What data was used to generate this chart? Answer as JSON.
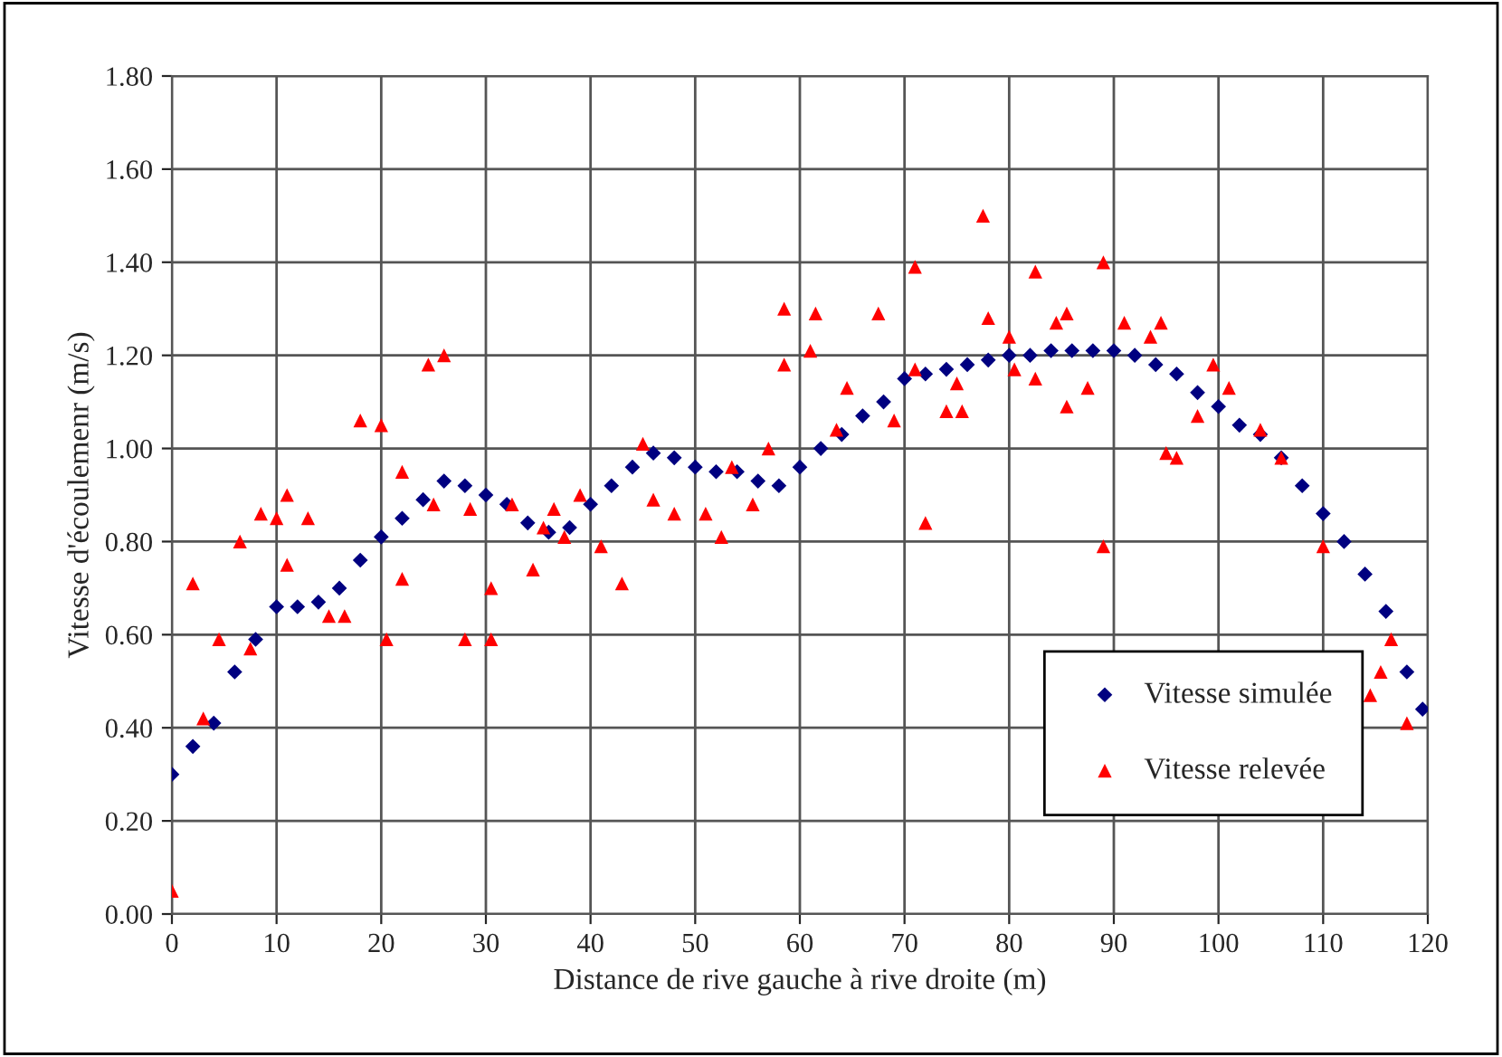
{
  "chart_data": {
    "type": "scatter",
    "xlabel": "Distance de rive gauche à rive droite (m)",
    "ylabel": "Vitesse d'écoulemenr (m/s)",
    "xlim": [
      0,
      120
    ],
    "xticks": [
      0,
      10,
      20,
      30,
      40,
      50,
      60,
      70,
      80,
      90,
      100,
      110,
      120
    ],
    "ylim": [
      0,
      1.8
    ],
    "yticks": [
      {
        "value": 0,
        "label": "0.00"
      },
      {
        "value": 0.2,
        "label": "0.20"
      },
      {
        "value": 0.4,
        "label": "0.40"
      },
      {
        "value": 0.6,
        "label": "0.60"
      },
      {
        "value": 0.8,
        "label": "0.80"
      },
      {
        "value": 1.0,
        "label": "1.00"
      },
      {
        "value": 1.2,
        "label": "1.20"
      },
      {
        "value": 1.4,
        "label": "1.40"
      },
      {
        "value": 1.6,
        "label": "1.60"
      },
      {
        "value": 1.8,
        "label": "1.80"
      }
    ],
    "grid": true,
    "legend": "bottom right",
    "series": [
      {
        "name": "Vitesse simulée",
        "color": "#000080",
        "marker": "diamond",
        "x": [
          0,
          2,
          4,
          6,
          8,
          10,
          12,
          14,
          16,
          18,
          20,
          22,
          24,
          26,
          28,
          30,
          32,
          34,
          36,
          38,
          40,
          42,
          44,
          46,
          48,
          50,
          52,
          54,
          56,
          58,
          60,
          62,
          64,
          66,
          68,
          70,
          72,
          74,
          76,
          78,
          80,
          82,
          84,
          86,
          88,
          90,
          92,
          94,
          96,
          98,
          100,
          102,
          104,
          106,
          108,
          110,
          112,
          114,
          116,
          118,
          119.5
        ],
        "values": [
          0.3,
          0.36,
          0.41,
          0.52,
          0.59,
          0.66,
          0.66,
          0.67,
          0.7,
          0.76,
          0.81,
          0.85,
          0.89,
          0.93,
          0.92,
          0.9,
          0.88,
          0.84,
          0.82,
          0.83,
          0.88,
          0.92,
          0.96,
          0.99,
          0.98,
          0.96,
          0.95,
          0.95,
          0.93,
          0.92,
          0.96,
          1.0,
          1.03,
          1.07,
          1.1,
          1.15,
          1.16,
          1.17,
          1.18,
          1.19,
          1.2,
          1.2,
          1.21,
          1.21,
          1.21,
          1.21,
          1.2,
          1.18,
          1.16,
          1.12,
          1.09,
          1.05,
          1.03,
          0.98,
          0.92,
          0.86,
          0.8,
          0.73,
          0.65,
          0.52,
          0.44
        ]
      },
      {
        "name": "Vitesse relevée",
        "color": "#ff0000",
        "marker": "triangle",
        "x": [
          0,
          2,
          3,
          4.5,
          6.5,
          7.5,
          8.5,
          10,
          11,
          11,
          13,
          15,
          16.5,
          18,
          20,
          20.5,
          22,
          22,
          24.5,
          25,
          26,
          28,
          28.5,
          30.5,
          30.5,
          32.5,
          34.5,
          35.5,
          36.5,
          37.5,
          39,
          41,
          43,
          45,
          46,
          48,
          51,
          52.5,
          53.5,
          55.5,
          57,
          58.5,
          58.5,
          61,
          61.5,
          63.5,
          64.5,
          67.5,
          69,
          71,
          71,
          72,
          74,
          75,
          75.5,
          77.5,
          78,
          80,
          80.5,
          82.5,
          82.5,
          84.5,
          85.5,
          85.5,
          87.5,
          89,
          89,
          91,
          93.5,
          94.5,
          95,
          96,
          98,
          99.5,
          101,
          104,
          106,
          110,
          114.5,
          115.5,
          116.5,
          118
        ],
        "values": [
          0.05,
          0.71,
          0.42,
          0.59,
          0.8,
          0.57,
          0.86,
          0.85,
          0.9,
          0.75,
          0.85,
          0.64,
          0.64,
          1.06,
          1.05,
          0.59,
          0.95,
          0.72,
          1.18,
          0.88,
          1.2,
          0.59,
          0.87,
          0.59,
          0.7,
          0.88,
          0.74,
          0.83,
          0.87,
          0.81,
          0.9,
          0.79,
          0.71,
          1.01,
          0.89,
          0.86,
          0.86,
          0.81,
          0.96,
          0.88,
          1.0,
          1.3,
          1.18,
          1.21,
          1.29,
          1.04,
          1.13,
          1.29,
          1.06,
          1.39,
          1.17,
          0.84,
          1.08,
          1.14,
          1.08,
          1.5,
          1.28,
          1.24,
          1.17,
          1.38,
          1.15,
          1.27,
          1.29,
          1.09,
          1.13,
          1.4,
          0.79,
          1.27,
          1.24,
          1.27,
          0.99,
          0.98,
          1.07,
          1.18,
          1.13,
          1.04,
          0.98,
          0.79,
          0.47,
          0.52,
          0.59,
          0.41
        ]
      }
    ]
  }
}
